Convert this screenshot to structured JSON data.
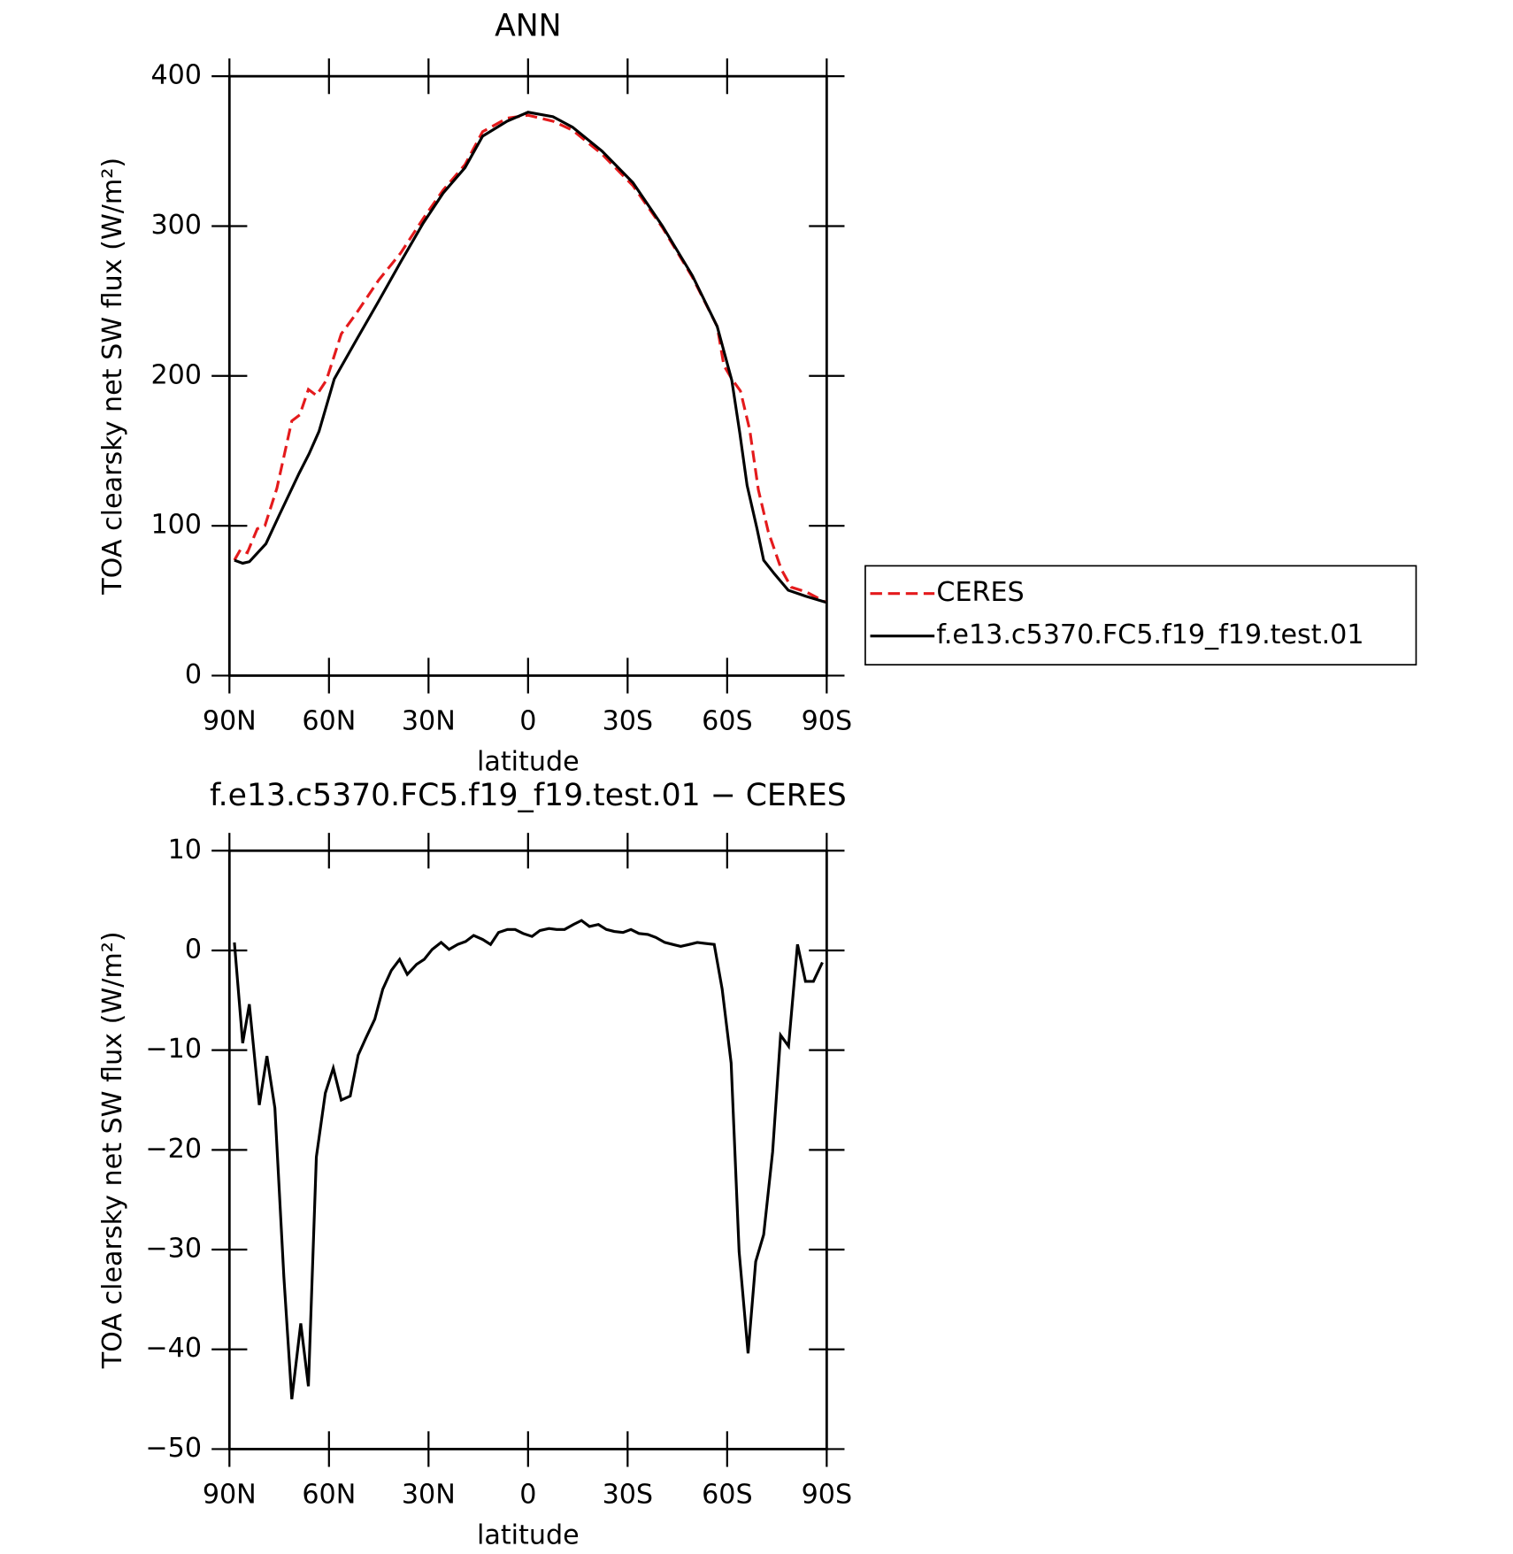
{
  "chart_data": [
    {
      "type": "line",
      "title": "ANN",
      "xlabel": "latitude",
      "ylabel": "TOA clearsky net SW flux (W/m²)",
      "xlim": [
        90,
        -90
      ],
      "ylim": [
        0,
        400
      ],
      "xticks": [
        {
          "value": 90,
          "label": "90N"
        },
        {
          "value": 60,
          "label": "60N"
        },
        {
          "value": 30,
          "label": "30N"
        },
        0,
        {
          "value": -30,
          "label": "30S"
        },
        {
          "value": -60,
          "label": "60S"
        },
        {
          "value": -90,
          "label": "90S"
        }
      ],
      "yticks": [
        0,
        100,
        200,
        300,
        400
      ],
      "legend": "right",
      "series": [
        {
          "name": "CERES",
          "color": "#e41a1c",
          "line_style": "dashed",
          "x": [
            88.5,
            86.7,
            84.6,
            81.6,
            79.3,
            75.7,
            71.2,
            68.8,
            66.2,
            63.8,
            60.8,
            56.3,
            52,
            45,
            38.4,
            31.6,
            25.6,
            19,
            13.7,
            6.3,
            0,
            -7.5,
            -13.4,
            -22.3,
            -31.6,
            -40.5,
            -49.5,
            -57,
            -59,
            -61.4,
            -64,
            -66.8,
            -69.4,
            -72.4,
            -76.3,
            -79.3,
            -83.7,
            -89.7
          ],
          "values": [
            77,
            84,
            82,
            98,
            100,
            125,
            170,
            174,
            191,
            187,
            197,
            228,
            241,
            264,
            282,
            305,
            324,
            341,
            363,
            372,
            374,
            370,
            364,
            348,
            327,
            299,
            266,
            233,
            207,
            198,
            190,
            164,
            124,
            96,
            71,
            59,
            56,
            49
          ]
        },
        {
          "name": "f.e13.c5370.FC5.f19_f19.test.01",
          "color": "#000000",
          "line_style": "solid",
          "x": [
            88.5,
            86,
            84,
            79,
            75,
            69,
            66,
            63,
            58.4,
            52,
            45,
            38.4,
            31.6,
            25.6,
            19,
            13.7,
            6.3,
            0,
            -7.5,
            -13.4,
            -22.3,
            -31.6,
            -40.5,
            -49.5,
            -57,
            -61.4,
            -63.8,
            -66,
            -69,
            -71,
            -74.2,
            -78.4,
            -83.7,
            -89.7
          ],
          "values": [
            77,
            75,
            76,
            88,
            107,
            135,
            148,
            163,
            198,
            223,
            250,
            276,
            302,
            322,
            339,
            360,
            370,
            376,
            373,
            366,
            350,
            329,
            300,
            267,
            233,
            197,
            162,
            127,
            98,
            77,
            68,
            57,
            53,
            49
          ]
        }
      ]
    },
    {
      "type": "line",
      "title": "f.e13.c5370.FC5.f19_f19.test.01 − CERES",
      "xlabel": "latitude",
      "ylabel": "TOA clearsky net SW flux (W/m²)",
      "xlim": [
        90,
        -90
      ],
      "ylim": [
        -50,
        10
      ],
      "xticks": [
        {
          "value": 90,
          "label": "90N"
        },
        {
          "value": 60,
          "label": "60N"
        },
        {
          "value": 30,
          "label": "30N"
        },
        0,
        {
          "value": -30,
          "label": "30S"
        },
        {
          "value": -60,
          "label": "60S"
        },
        {
          "value": -90,
          "label": "90S"
        }
      ],
      "yticks": [
        {
          "value": -50,
          "label": "−50"
        },
        {
          "value": -40,
          "label": "−40"
        },
        {
          "value": -30,
          "label": "−30"
        },
        {
          "value": -20,
          "label": "−20"
        },
        {
          "value": -10,
          "label": "−10"
        },
        0,
        10
      ],
      "series": [
        {
          "color": "#000000",
          "line_style": "solid",
          "x": [
            88.5,
            86,
            84,
            81,
            78.7,
            76.3,
            73.6,
            71.2,
            68.5,
            66.2,
            63.8,
            61.1,
            58.7,
            56.3,
            53.6,
            51.2,
            48.9,
            46.2,
            43.8,
            41.2,
            38.7,
            36.4,
            33.6,
            31.3,
            28.9,
            26.2,
            23.8,
            21.2,
            18.8,
            16.4,
            13.7,
            11.3,
            8.9,
            6.2,
            3.9,
            1.5,
            -1.2,
            -3.6,
            -6.3,
            -8.6,
            -11,
            -13.7,
            -16.1,
            -18.5,
            -21.2,
            -23.6,
            -26,
            -28.6,
            -31,
            -33.4,
            -36.1,
            -38.5,
            -41.2,
            -43.6,
            -46,
            -48.6,
            -51,
            -53.4,
            -56.1,
            -58.5,
            -61.2,
            -63.6,
            -66.3,
            -68.6,
            -71,
            -73.7,
            -76.1,
            -78.5,
            -81.2,
            -83.6,
            -86,
            -88.7
          ],
          "values": [
            0.8,
            -9.3,
            -5.4,
            -15.5,
            -10.6,
            -15.8,
            -32.7,
            -45,
            -37.4,
            -43.7,
            -20.7,
            -14.3,
            -11.8,
            -15,
            -14.6,
            -10.5,
            -8.8,
            -6.9,
            -3.9,
            -2,
            -0.9,
            -2.4,
            -1.4,
            -0.9,
            0.1,
            0.8,
            0.1,
            0.6,
            0.9,
            1.5,
            1.1,
            0.6,
            1.8,
            2.1,
            2.1,
            1.7,
            1.4,
            2,
            2.2,
            2.1,
            2.1,
            2.6,
            3,
            2.4,
            2.6,
            2.1,
            1.9,
            1.8,
            2.1,
            1.7,
            1.6,
            1.3,
            0.8,
            0.6,
            0.4,
            0.6,
            0.8,
            0.7,
            0.6,
            -3.9,
            -11.3,
            -30.2,
            -40.4,
            -31.2,
            -28.5,
            -20.2,
            -8.5,
            -9.6,
            0.6,
            -3.1,
            -3.1,
            -1.2
          ]
        }
      ]
    }
  ]
}
